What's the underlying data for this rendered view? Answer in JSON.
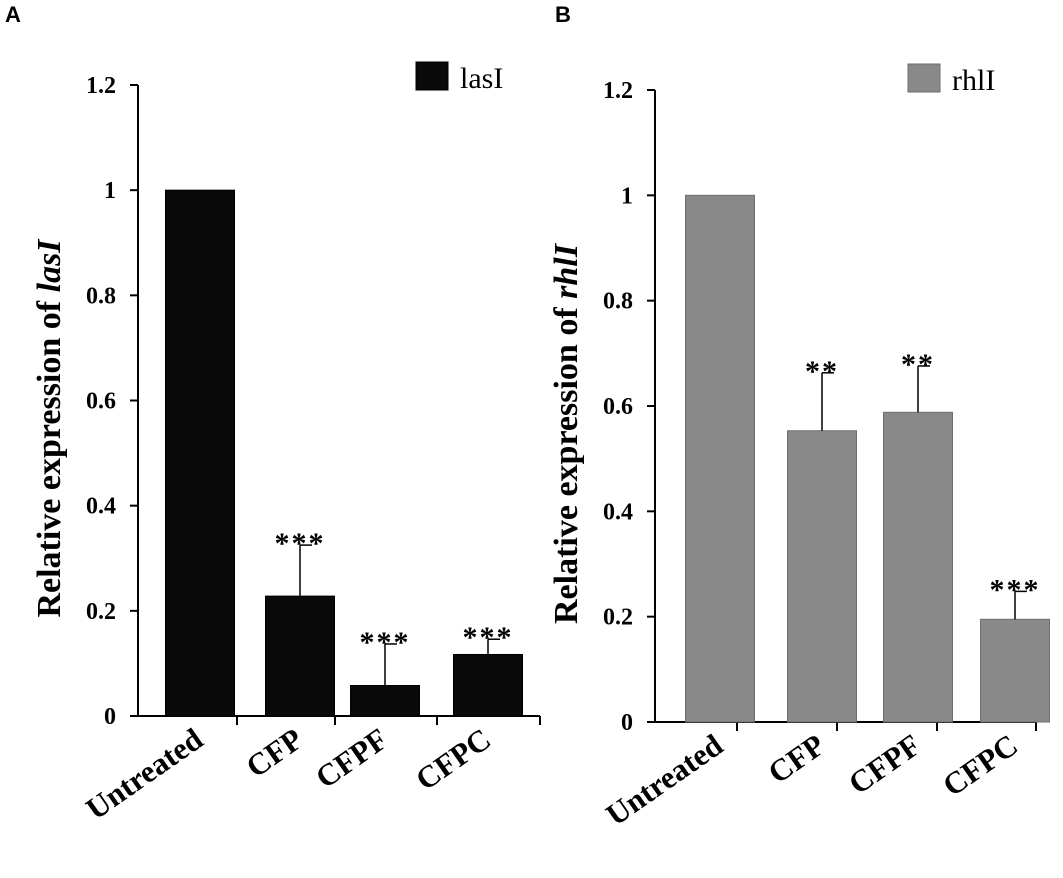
{
  "chart_data": [
    {
      "panel": "A",
      "type": "bar",
      "categories": [
        "Untreated",
        "CFP",
        "CFPF",
        "CFPC"
      ],
      "series": [
        {
          "name": "lasI",
          "values": [
            1.0,
            0.228,
            0.058,
            0.117
          ],
          "errors": [
            0.0,
            0.097,
            0.079,
            0.029
          ],
          "color": "#0a0a0a"
        }
      ],
      "significance": [
        "",
        "***",
        "***",
        "***"
      ],
      "ylabel_prefix": "Relative expression of ",
      "ylabel_gene": "lasI",
      "xlabel": "",
      "ylim": [
        0,
        1.2
      ],
      "yticks": [
        "0",
        "0.2",
        "0.4",
        "0.6",
        "0.8",
        "1",
        "1.2"
      ],
      "legend": "top-right"
    },
    {
      "panel": "B",
      "type": "bar",
      "categories": [
        "Untreated",
        "CFP",
        "CFPF",
        "CFPC"
      ],
      "series": [
        {
          "name": "rhlI",
          "values": [
            1.0,
            0.553,
            0.588,
            0.195
          ],
          "errors": [
            0.0,
            0.11,
            0.088,
            0.053
          ],
          "color": "#898989"
        }
      ],
      "significance": [
        "",
        "**",
        "**",
        "***"
      ],
      "ylabel_prefix": "Relative expression of ",
      "ylabel_gene": "rhlI",
      "xlabel": "",
      "ylim": [
        0,
        1.2
      ],
      "yticks": [
        "0",
        "0.2",
        "0.4",
        "0.6",
        "0.8",
        "1",
        "1.2"
      ],
      "legend": "top-right"
    }
  ]
}
